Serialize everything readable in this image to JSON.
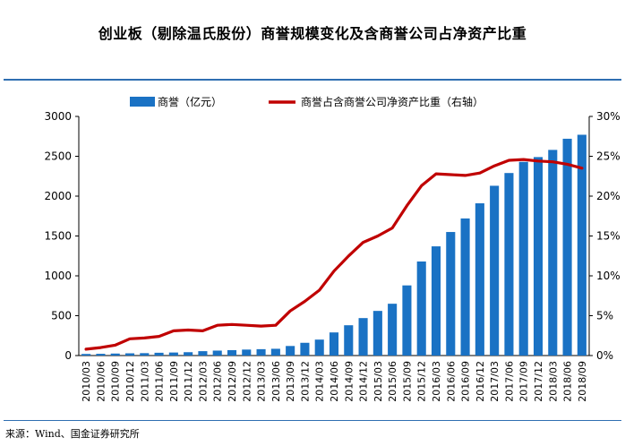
{
  "title": "创业板（剔除温氏股份）商誉规模变化及含商誉公司占净资产比重",
  "source": "来源：Wind、国金证券研究所",
  "colors": {
    "bar": "#1a72c4",
    "line": "#c00000",
    "rule": "#2f6fb1"
  },
  "chart_data": {
    "type": "bar",
    "categories": [
      "2010/03",
      "2010/06",
      "2010/09",
      "2010/12",
      "2011/03",
      "2011/06",
      "2011/09",
      "2011/12",
      "2012/03",
      "2012/06",
      "2012/09",
      "2012/12",
      "2013/03",
      "2013/06",
      "2013/09",
      "2013/12",
      "2014/03",
      "2014/06",
      "2014/09",
      "2014/12",
      "2015/03",
      "2015/06",
      "2015/09",
      "2015/12",
      "2016/03",
      "2016/06",
      "2016/09",
      "2016/12",
      "2017/03",
      "2017/06",
      "2017/09",
      "2017/12",
      "2018/03",
      "2018/06",
      "2018/09"
    ],
    "series": [
      {
        "name": "商誉（亿元）",
        "type": "bar",
        "axis": "left",
        "values": [
          20,
          22,
          25,
          28,
          30,
          35,
          38,
          42,
          55,
          62,
          68,
          75,
          80,
          85,
          120,
          160,
          200,
          290,
          380,
          470,
          560,
          650,
          880,
          1180,
          1370,
          1550,
          1720,
          1910,
          2130,
          2290,
          2430,
          2490,
          2580,
          2720,
          2770
        ]
      },
      {
        "name": "商誉占含商誉公司净资产比重（右轴）",
        "type": "line",
        "axis": "right",
        "values": [
          0.8,
          1.0,
          1.3,
          2.1,
          2.2,
          2.4,
          3.1,
          3.2,
          3.1,
          3.8,
          3.9,
          3.8,
          3.7,
          3.8,
          5.6,
          6.8,
          8.2,
          10.6,
          12.5,
          14.2,
          15.0,
          16.0,
          18.8,
          21.3,
          22.8,
          22.7,
          22.6,
          22.9,
          23.8,
          24.5,
          24.6,
          24.4,
          24.3,
          24.0,
          23.5
        ]
      }
    ],
    "y_left": {
      "range": [
        0,
        3000
      ],
      "ticks": [
        "0",
        "500",
        "1000",
        "1500",
        "2000",
        "2500",
        "3000"
      ]
    },
    "y_right": {
      "range": [
        0,
        30
      ],
      "ticks": [
        "0%",
        "5%",
        "10%",
        "15%",
        "20%",
        "25%",
        "30%"
      ]
    },
    "grid": false,
    "legend": "top-center"
  }
}
